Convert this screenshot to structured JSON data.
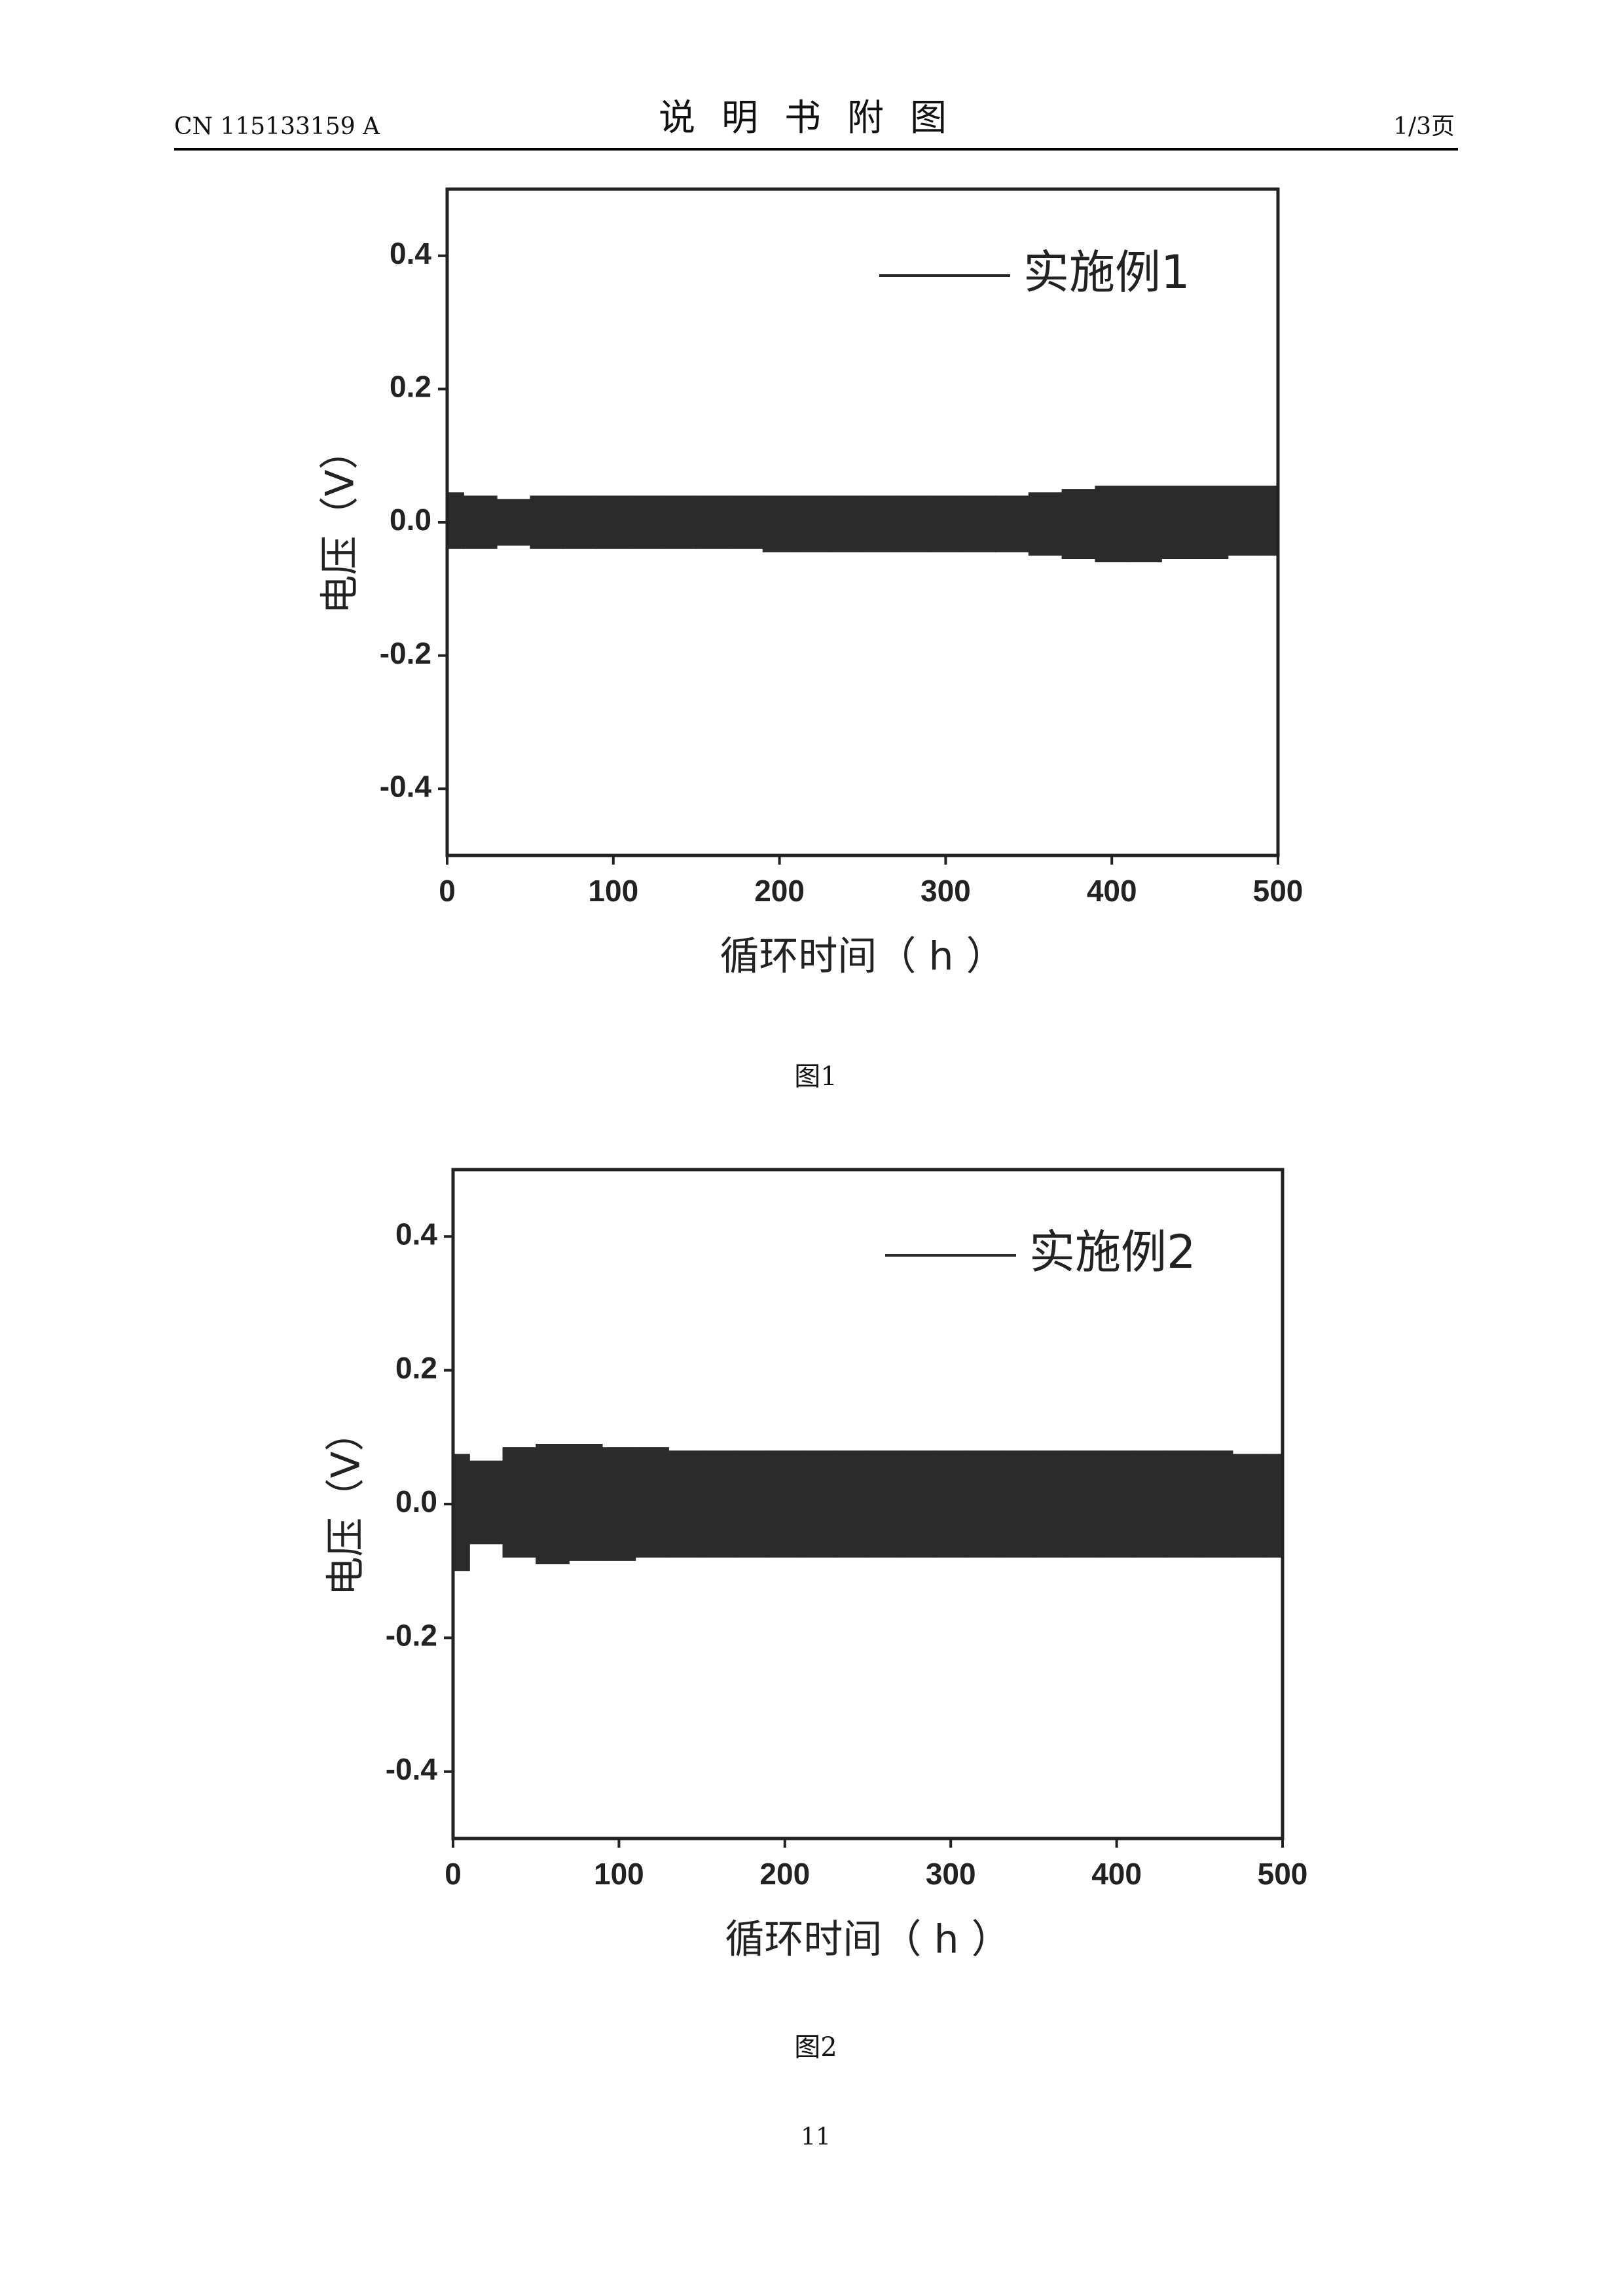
{
  "header": {
    "doc_number": "CN 115133159 A",
    "title": "说明书附图",
    "page_of": "1/3页"
  },
  "chart_data": [
    {
      "type": "band",
      "xlabel": "循环时间（ h ）",
      "ylabel": "电压（V）",
      "x": [
        0,
        20,
        40,
        60,
        80,
        100,
        120,
        140,
        160,
        180,
        200,
        220,
        240,
        260,
        280,
        300,
        320,
        340,
        360,
        380,
        400,
        420,
        440,
        460,
        480,
        500
      ],
      "series": [
        {
          "name": "实施例1",
          "color": "#2b2b2b",
          "upper": [
            0.045,
            0.04,
            0.035,
            0.04,
            0.04,
            0.04,
            0.04,
            0.04,
            0.04,
            0.04,
            0.04,
            0.04,
            0.04,
            0.04,
            0.04,
            0.04,
            0.04,
            0.04,
            0.045,
            0.05,
            0.055,
            0.055,
            0.055,
            0.055,
            0.055,
            0.055
          ],
          "lower": [
            -0.04,
            -0.04,
            -0.035,
            -0.04,
            -0.04,
            -0.04,
            -0.04,
            -0.04,
            -0.04,
            -0.04,
            -0.045,
            -0.045,
            -0.045,
            -0.045,
            -0.045,
            -0.045,
            -0.045,
            -0.045,
            -0.05,
            -0.055,
            -0.06,
            -0.06,
            -0.055,
            -0.055,
            -0.05,
            -0.05
          ]
        }
      ],
      "xlim": [
        0,
        500
      ],
      "ylim": [
        -0.5,
        0.5
      ],
      "xticks": [
        0,
        100,
        200,
        300,
        400,
        500
      ],
      "yticks": [
        -0.4,
        -0.2,
        {
          "value": 0,
          "label": "0.0"
        },
        0.2,
        0.4
      ],
      "caption": "图1"
    },
    {
      "type": "band",
      "xlabel": "循环时间（ h ）",
      "ylabel": "电压（V）",
      "x": [
        0,
        20,
        40,
        60,
        80,
        100,
        120,
        140,
        160,
        180,
        200,
        220,
        240,
        260,
        280,
        300,
        320,
        340,
        360,
        380,
        400,
        420,
        440,
        460,
        480,
        500
      ],
      "series": [
        {
          "name": "实施例2",
          "color": "#2b2b2b",
          "upper": [
            0.075,
            0.065,
            0.085,
            0.09,
            0.09,
            0.085,
            0.085,
            0.08,
            0.08,
            0.08,
            0.08,
            0.08,
            0.08,
            0.08,
            0.08,
            0.08,
            0.08,
            0.08,
            0.08,
            0.08,
            0.08,
            0.08,
            0.08,
            0.08,
            0.075,
            0.075
          ],
          "lower": [
            -0.1,
            -0.06,
            -0.08,
            -0.09,
            -0.085,
            -0.085,
            -0.08,
            -0.08,
            -0.08,
            -0.08,
            -0.08,
            -0.08,
            -0.08,
            -0.08,
            -0.08,
            -0.08,
            -0.08,
            -0.08,
            -0.08,
            -0.08,
            -0.08,
            -0.08,
            -0.08,
            -0.08,
            -0.08,
            -0.08
          ]
        }
      ],
      "xlim": [
        0,
        500
      ],
      "ylim": [
        -0.5,
        0.5
      ],
      "xticks": [
        0,
        100,
        200,
        300,
        400,
        500
      ],
      "yticks": [
        -0.4,
        -0.2,
        {
          "value": 0,
          "label": "0.0"
        },
        0.2,
        0.4
      ],
      "caption": "图2"
    }
  ],
  "page_number": "11"
}
